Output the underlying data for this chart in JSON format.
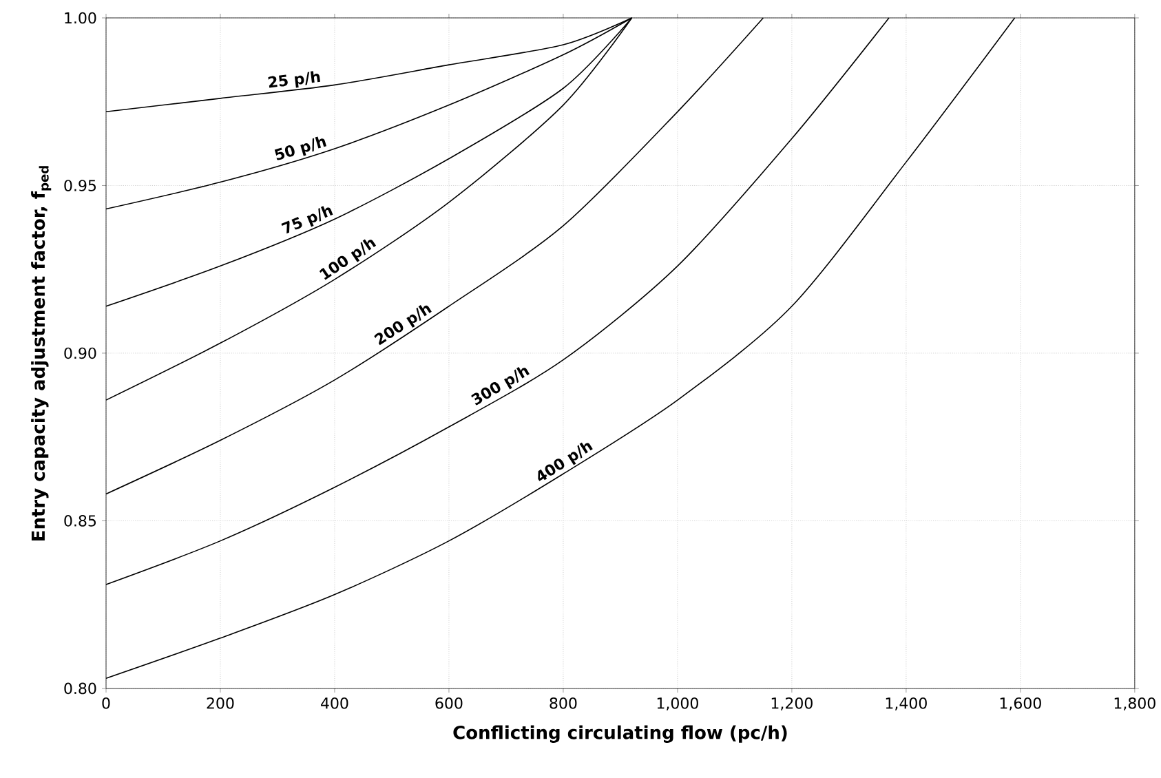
{
  "chart_data": {
    "type": "line",
    "xlabel": "Conflicting circulating flow (pc/h)",
    "ylabel": "Entry capacity adjustment factor, f$_{ped}$",
    "xlim": [
      0,
      1800
    ],
    "ylim": [
      0.8,
      1.0
    ],
    "xticks": [
      0,
      200,
      400,
      600,
      800,
      {
        "value": 1000,
        "label": "1,000"
      },
      {
        "value": 1200,
        "label": "1,200"
      },
      {
        "value": 1400,
        "label": "1,400"
      },
      {
        "value": 1600,
        "label": "1,600"
      },
      {
        "value": 1800,
        "label": "1,800"
      }
    ],
    "yticks": [
      {
        "value": 0.8,
        "label": "0.80"
      },
      0.85,
      {
        "value": 0.9,
        "label": "0.90"
      },
      0.95,
      {
        "value": 1.0,
        "label": "1.00"
      }
    ],
    "grid": true,
    "series": [
      {
        "name": "25 p/h",
        "color": "#000000",
        "x": [
          0,
          200,
          400,
          600,
          800,
          920
        ],
        "values": [
          0.972,
          0.976,
          0.98,
          0.986,
          0.992,
          1.0
        ]
      },
      {
        "name": "50 p/h",
        "color": "#000000",
        "x": [
          0,
          200,
          400,
          600,
          800,
          920
        ],
        "values": [
          0.943,
          0.951,
          0.961,
          0.974,
          0.989,
          1.0
        ]
      },
      {
        "name": "75 p/h",
        "color": "#000000",
        "x": [
          0,
          200,
          400,
          600,
          800,
          920
        ],
        "values": [
          0.914,
          0.926,
          0.94,
          0.958,
          0.979,
          1.0
        ]
      },
      {
        "name": "100 p/h",
        "color": "#000000",
        "x": [
          0,
          200,
          400,
          600,
          800,
          920
        ],
        "values": [
          0.886,
          0.903,
          0.922,
          0.945,
          0.974,
          1.0
        ]
      },
      {
        "name": "200 p/h",
        "color": "#000000",
        "x": [
          0,
          200,
          400,
          600,
          800,
          1000,
          1150
        ],
        "values": [
          0.858,
          0.874,
          0.892,
          0.914,
          0.938,
          0.972,
          1.0
        ]
      },
      {
        "name": "300 p/h",
        "color": "#000000",
        "x": [
          0,
          200,
          400,
          600,
          800,
          1000,
          1200,
          1370
        ],
        "values": [
          0.831,
          0.844,
          0.86,
          0.878,
          0.898,
          0.926,
          0.964,
          1.0
        ]
      },
      {
        "name": "400 p/h",
        "color": "#000000",
        "x": [
          0,
          200,
          400,
          600,
          800,
          1000,
          1200,
          1400,
          1590
        ],
        "values": [
          0.803,
          0.815,
          0.828,
          0.844,
          0.864,
          0.886,
          0.914,
          0.957,
          1.0
        ]
      }
    ]
  }
}
